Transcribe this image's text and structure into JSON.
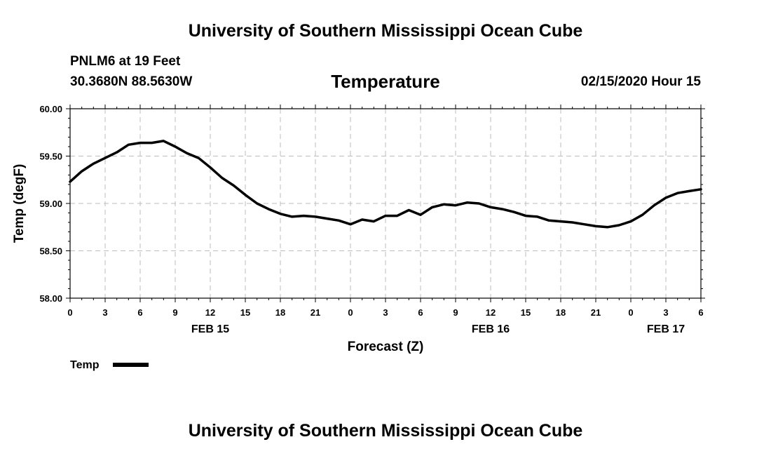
{
  "page": {
    "top_title": "University of Southern Mississippi Ocean Cube",
    "bottom_title": "University of Southern Mississippi Ocean Cube",
    "station": "PNLM6 at 19 Feet",
    "location": "30.3680N 88.5630W",
    "valid_time": "02/15/2020 Hour 15"
  },
  "chart_data": {
    "type": "line",
    "title": "Temperature",
    "xlabel": "Forecast (Z)",
    "ylabel": "Temp (degF)",
    "ylim": [
      58.0,
      60.0
    ],
    "xlim": [
      0,
      54
    ],
    "yticks": [
      58.0,
      58.5,
      59.0,
      59.5,
      60.0
    ],
    "ytick_labels": [
      "58.00",
      "58.50",
      "59.00",
      "59.50",
      "60.00"
    ],
    "xticks": [
      0,
      3,
      6,
      9,
      12,
      15,
      18,
      21,
      24,
      27,
      30,
      33,
      36,
      39,
      42,
      45,
      48,
      51,
      54
    ],
    "xtick_labels": [
      "0",
      "3",
      "6",
      "9",
      "12",
      "15",
      "18",
      "21",
      "0",
      "3",
      "6",
      "9",
      "12",
      "15",
      "18",
      "21",
      "0",
      "3",
      "6"
    ],
    "date_labels": [
      {
        "x": 12,
        "text": "FEB 15"
      },
      {
        "x": 36,
        "text": "FEB 16"
      },
      {
        "x": 51,
        "text": "FEB 17"
      }
    ],
    "grid": true,
    "legend": {
      "position": "bottom-left",
      "entries": [
        "Temp"
      ]
    },
    "series": [
      {
        "name": "Temp",
        "color": "#000000",
        "x": [
          0,
          1,
          2,
          3,
          4,
          5,
          6,
          7,
          8,
          9,
          10,
          11,
          12,
          13,
          14,
          15,
          16,
          17,
          18,
          19,
          20,
          21,
          22,
          23,
          24,
          25,
          26,
          27,
          28,
          29,
          30,
          31,
          32,
          33,
          34,
          35,
          36,
          37,
          38,
          39,
          40,
          41,
          42,
          43,
          44,
          45,
          46,
          47,
          48,
          49,
          50,
          51,
          52,
          53,
          54
        ],
        "values": [
          59.23,
          59.34,
          59.42,
          59.48,
          59.54,
          59.62,
          59.64,
          59.64,
          59.66,
          59.6,
          59.53,
          59.48,
          59.38,
          59.27,
          59.19,
          59.09,
          59.0,
          58.94,
          58.89,
          58.86,
          58.87,
          58.86,
          58.84,
          58.82,
          58.78,
          58.83,
          58.81,
          58.87,
          58.87,
          58.93,
          58.88,
          58.96,
          58.99,
          58.98,
          59.01,
          59.0,
          58.96,
          58.94,
          58.91,
          58.87,
          58.86,
          58.82,
          58.81,
          58.8,
          58.78,
          58.76,
          58.75,
          58.77,
          58.81,
          58.88,
          58.98,
          59.06,
          59.11,
          59.13,
          59.15
        ]
      }
    ]
  }
}
